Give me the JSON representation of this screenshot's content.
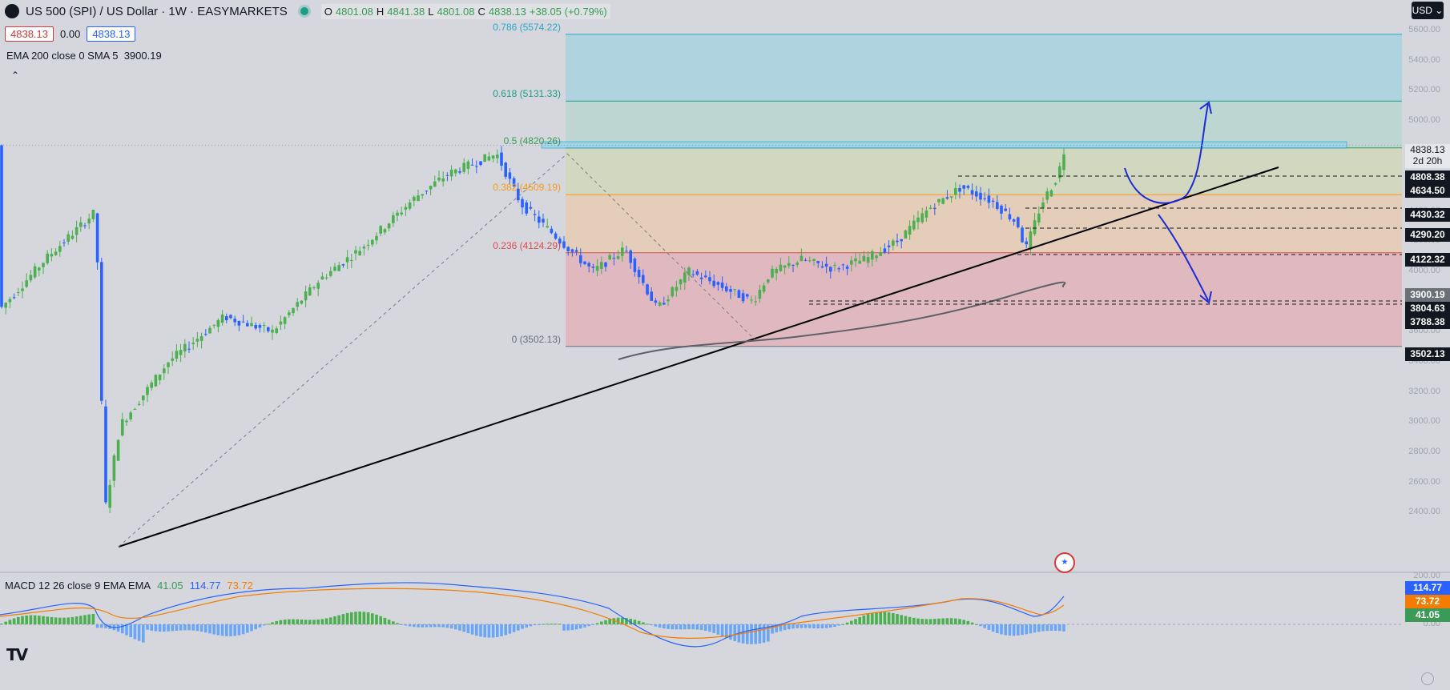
{
  "header": {
    "title": "US 500 (SPI) / US Dollar · 1W · EASYMARKETS",
    "ohlc": {
      "o_label": "O",
      "o": "4801.08",
      "h_label": "H",
      "h": "4841.38",
      "l_label": "L",
      "l": "4801.08",
      "c_label": "C",
      "c": "4838.13",
      "change": "+38.05 (+0.79%)"
    },
    "sell_price": "4838.13",
    "spread": "0.00",
    "buy_price": "4838.13"
  },
  "indicators": {
    "ema_label": "EMA 200 close 0 SMA 5",
    "ema_value": "3900.19",
    "macd_label": "MACD 12 26 close 9 EMA EMA",
    "macd_hist": "41.05",
    "macd_line": "114.77",
    "macd_signal": "73.72"
  },
  "currency": "USD",
  "fib_levels": [
    {
      "label": "0.786 (5574.22)",
      "price": 5574.22,
      "color": "#2aa6c9"
    },
    {
      "label": "0.618 (5131.33)",
      "price": 5131.33,
      "color": "#1a9e8a"
    },
    {
      "label": "0.5 (4820.26)",
      "price": 4820.26,
      "color": "#3a9a56"
    },
    {
      "label": "0.382 (4509.19)",
      "price": 4509.19,
      "color": "#f59c1a"
    },
    {
      "label": "0.236 (4124.29)",
      "price": 4124.29,
      "color": "#e04a4a"
    },
    {
      "label": "0 (3502.13)",
      "price": 3502.13,
      "color": "#6b6f78"
    }
  ],
  "axis_ticks": [
    "5600.00",
    "5400.00",
    "5200.00",
    "5000.00",
    "4800.00",
    "4600.00",
    "4400.00",
    "4200.00",
    "4000.00",
    "3800.00",
    "3600.00",
    "3400.00",
    "3200.00",
    "3000.00",
    "2800.00",
    "2600.00",
    "2400.00"
  ],
  "price_tags": [
    {
      "value": "4838.13",
      "sub": "2d 20h",
      "style": "last"
    },
    {
      "value": "4808.38",
      "style": "dark"
    },
    {
      "value": "4634.50",
      "style": "dark"
    },
    {
      "value": "4430.32",
      "style": "dark"
    },
    {
      "value": "4290.20",
      "style": "dark"
    },
    {
      "value": "4122.32",
      "style": "dark"
    },
    {
      "value": "3900.19",
      "style": "grey"
    },
    {
      "value": "3804.63",
      "style": "dark"
    },
    {
      "value": "3788.38",
      "style": "dark"
    },
    {
      "value": "3502.13",
      "style": "dark"
    }
  ],
  "macd_axis_ticks": [
    "200.00",
    "0.00"
  ],
  "macd_tags": [
    {
      "value": "114.77",
      "color": "#2962ff"
    },
    {
      "value": "73.72",
      "color": "#f57c00"
    },
    {
      "value": "41.05",
      "color": "#3a9a56"
    }
  ],
  "brand": "TV",
  "colors": {
    "up": "#4caf50",
    "down": "#2962ff",
    "ema": "#5d6068",
    "trend": "#000000"
  }
}
